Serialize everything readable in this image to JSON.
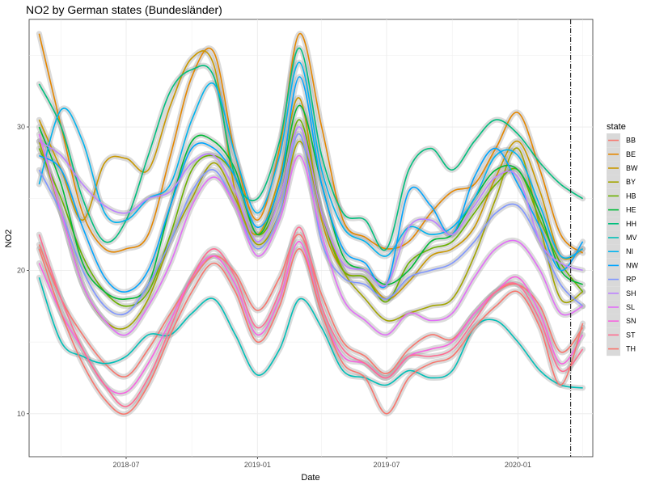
{
  "chart_data": {
    "type": "line",
    "title": "NO2 by German states (Bundesländer)",
    "xlabel": "Date",
    "ylabel": "NO2",
    "x_ticks": [
      "2018-07",
      "2019-01",
      "2019-07",
      "2020-01"
    ],
    "y_ticks": [
      10,
      20,
      30
    ],
    "x_domain": [
      "2018-02-15",
      "2020-04-15"
    ],
    "ylim": [
      7.0,
      37.5
    ],
    "vline_date": "2020-03-15",
    "grid": true,
    "legend_title": "state",
    "legend_position": "right",
    "x": [
      "2018-03-01",
      "2018-04-01",
      "2018-05-01",
      "2018-06-01",
      "2018-07-01",
      "2018-08-01",
      "2018-09-01",
      "2018-10-01",
      "2018-11-01",
      "2018-12-01",
      "2019-01-01",
      "2019-02-01",
      "2019-03-01",
      "2019-04-01",
      "2019-05-01",
      "2019-06-01",
      "2019-07-01",
      "2019-08-01",
      "2019-09-01",
      "2019-10-01",
      "2019-11-01",
      "2019-12-01",
      "2020-01-01",
      "2020-02-01",
      "2020-03-01",
      "2020-04-01"
    ],
    "series": [
      {
        "name": "BB",
        "color": "#F8766D",
        "values": [
          21.8,
          18.0,
          15.5,
          13.5,
          12.6,
          14.5,
          17.0,
          19.3,
          21.0,
          19.8,
          17.2,
          19.5,
          22.5,
          18.3,
          15.0,
          14.0,
          12.8,
          14.5,
          15.5,
          15.2,
          17.0,
          18.5,
          19.0,
          17.5,
          14.3,
          16.0
        ]
      },
      {
        "name": "BE",
        "color": "#E58700",
        "values": [
          36.5,
          30.0,
          24.0,
          21.5,
          21.5,
          22.5,
          28.0,
          33.5,
          35.2,
          28.0,
          23.5,
          28.5,
          36.5,
          30.0,
          23.5,
          22.3,
          21.5,
          22.0,
          24.0,
          25.5,
          26.0,
          28.5,
          31.0,
          27.0,
          22.5,
          21.2
        ]
      },
      {
        "name": "BW",
        "color": "#C99800",
        "values": [
          30.5,
          27.0,
          23.5,
          27.5,
          27.8,
          27.0,
          31.5,
          34.8,
          34.3,
          25.5,
          22.5,
          26.5,
          32.0,
          23.5,
          20.0,
          19.5,
          18.0,
          19.2,
          21.0,
          21.5,
          23.0,
          26.5,
          29.0,
          25.5,
          21.0,
          21.5
        ]
      },
      {
        "name": "BY",
        "color": "#A3A500",
        "values": [
          29.0,
          24.0,
          19.0,
          16.5,
          16.0,
          18.0,
          22.0,
          25.0,
          27.5,
          25.0,
          21.8,
          24.0,
          29.0,
          24.0,
          20.0,
          18.0,
          16.5,
          17.0,
          17.5,
          18.0,
          21.0,
          25.0,
          28.5,
          23.0,
          18.0,
          18.5
        ]
      },
      {
        "name": "HB",
        "color": "#6BB100",
        "values": [
          28.5,
          25.0,
          21.0,
          18.5,
          17.5,
          18.5,
          22.5,
          27.0,
          28.0,
          26.5,
          22.5,
          25.0,
          30.5,
          24.0,
          20.0,
          19.5,
          17.8,
          20.5,
          21.5,
          22.0,
          24.0,
          26.0,
          27.0,
          23.5,
          20.5,
          18.5
        ]
      },
      {
        "name": "HE",
        "color": "#00BA38",
        "values": [
          30.0,
          26.0,
          20.5,
          18.5,
          18.0,
          19.0,
          24.5,
          29.0,
          29.0,
          27.0,
          22.5,
          26.0,
          31.5,
          26.0,
          21.0,
          20.0,
          19.0,
          20.0,
          22.0,
          22.5,
          25.0,
          27.0,
          27.0,
          24.0,
          20.0,
          19.0
        ]
      },
      {
        "name": "HH",
        "color": "#00BF7D",
        "values": [
          33.0,
          30.0,
          25.0,
          22.0,
          23.5,
          28.0,
          32.5,
          34.0,
          33.5,
          26.5,
          25.0,
          29.0,
          35.5,
          28.0,
          24.0,
          23.5,
          21.5,
          27.0,
          28.5,
          27.0,
          29.0,
          30.5,
          29.5,
          27.5,
          26.0,
          25.0
        ]
      },
      {
        "name": "MV",
        "color": "#00C0B8",
        "values": [
          19.5,
          15.0,
          14.0,
          13.5,
          14.0,
          15.5,
          15.5,
          17.0,
          18.0,
          15.5,
          12.7,
          14.5,
          18.0,
          16.0,
          13.0,
          12.5,
          12.0,
          13.0,
          12.5,
          13.0,
          16.0,
          16.5,
          15.0,
          13.0,
          12.0,
          11.8
        ]
      },
      {
        "name": "NI",
        "color": "#00B4EF",
        "values": [
          26.0,
          31.2,
          29.0,
          24.0,
          23.5,
          25.0,
          26.0,
          30.5,
          33.0,
          28.0,
          24.0,
          28.0,
          34.5,
          27.0,
          23.0,
          22.0,
          21.0,
          23.0,
          22.5,
          23.0,
          25.0,
          28.0,
          28.0,
          24.5,
          21.0,
          21.5
        ]
      },
      {
        "name": "NW",
        "color": "#00A5FF",
        "values": [
          28.0,
          27.0,
          23.0,
          19.5,
          18.5,
          20.0,
          24.5,
          28.5,
          28.5,
          26.5,
          23.0,
          26.0,
          33.5,
          26.0,
          21.5,
          20.5,
          19.0,
          25.5,
          24.5,
          22.5,
          26.5,
          28.5,
          26.0,
          23.0,
          20.0,
          22.0
        ]
      },
      {
        "name": "RP",
        "color": "#7F96FF",
        "values": [
          27.0,
          24.0,
          20.0,
          17.5,
          17.0,
          19.0,
          22.0,
          25.5,
          27.0,
          24.5,
          21.5,
          24.0,
          29.5,
          22.0,
          19.5,
          19.0,
          18.0,
          19.5,
          20.0,
          20.5,
          22.0,
          24.0,
          24.5,
          22.0,
          19.0,
          17.5
        ]
      },
      {
        "name": "SH",
        "color": "#BC81FF",
        "values": [
          29.0,
          28.0,
          26.0,
          24.5,
          24.0,
          25.0,
          25.5,
          27.5,
          28.0,
          25.5,
          22.0,
          25.0,
          30.0,
          24.0,
          20.5,
          20.0,
          19.0,
          23.0,
          23.5,
          22.5,
          24.5,
          26.5,
          26.5,
          22.0,
          20.5,
          20.0
        ]
      },
      {
        "name": "SL",
        "color": "#E26EF7",
        "values": [
          29.5,
          24.0,
          19.0,
          16.5,
          15.5,
          17.5,
          20.5,
          24.5,
          26.5,
          24.5,
          21.0,
          23.5,
          28.0,
          22.5,
          18.0,
          16.5,
          15.5,
          17.0,
          16.5,
          17.0,
          19.5,
          21.5,
          22.0,
          20.0,
          17.0,
          17.5
        ]
      },
      {
        "name": "SN",
        "color": "#F763E0",
        "values": [
          20.5,
          17.0,
          14.5,
          12.0,
          11.5,
          13.5,
          16.5,
          19.5,
          21.0,
          19.0,
          15.5,
          18.0,
          22.0,
          17.0,
          14.0,
          13.5,
          12.5,
          14.0,
          14.5,
          15.0,
          17.0,
          18.5,
          19.5,
          17.0,
          13.5,
          15.5
        ]
      },
      {
        "name": "ST",
        "color": "#FF6C91",
        "values": [
          22.5,
          18.0,
          14.5,
          12.0,
          10.5,
          12.5,
          16.0,
          19.5,
          21.5,
          19.5,
          16.0,
          18.5,
          23.0,
          17.5,
          14.5,
          13.5,
          12.5,
          14.0,
          14.0,
          14.5,
          16.5,
          18.5,
          19.0,
          16.5,
          13.0,
          14.5
        ]
      },
      {
        "name": "TH",
        "color": "#F8766D",
        "values": [
          21.5,
          17.0,
          13.5,
          11.0,
          10.0,
          12.0,
          15.5,
          18.5,
          20.5,
          18.5,
          15.0,
          17.5,
          21.5,
          17.0,
          13.5,
          12.5,
          10.0,
          12.5,
          13.5,
          14.0,
          16.0,
          17.5,
          18.5,
          16.0,
          12.0,
          16.3
        ]
      }
    ]
  }
}
